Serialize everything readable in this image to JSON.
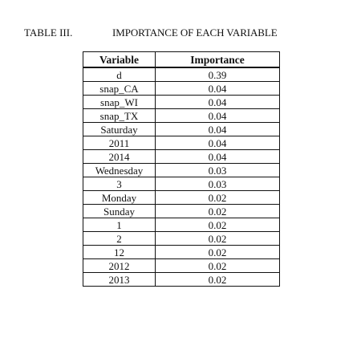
{
  "caption": {
    "label": "TABLE III.",
    "title": "IMPORTANCE OF EACH VARIABLE"
  },
  "table": {
    "headers": [
      "Variable",
      "Importance"
    ],
    "rows": [
      [
        "d",
        "0.39"
      ],
      [
        "snap_CA",
        "0.04"
      ],
      [
        "snap_WI",
        "0.04"
      ],
      [
        "snap_TX",
        "0.04"
      ],
      [
        "Saturday",
        "0.04"
      ],
      [
        "2011",
        "0.04"
      ],
      [
        "2014",
        "0.04"
      ],
      [
        "Wednesday",
        "0.03"
      ],
      [
        "3",
        "0.03"
      ],
      [
        "Monday",
        "0.02"
      ],
      [
        "Sunday",
        "0.02"
      ],
      [
        "1",
        "0.02"
      ],
      [
        "2",
        "0.02"
      ],
      [
        "12",
        "0.02"
      ],
      [
        "2012",
        "0.02"
      ],
      [
        "2013",
        "0.02"
      ]
    ]
  }
}
